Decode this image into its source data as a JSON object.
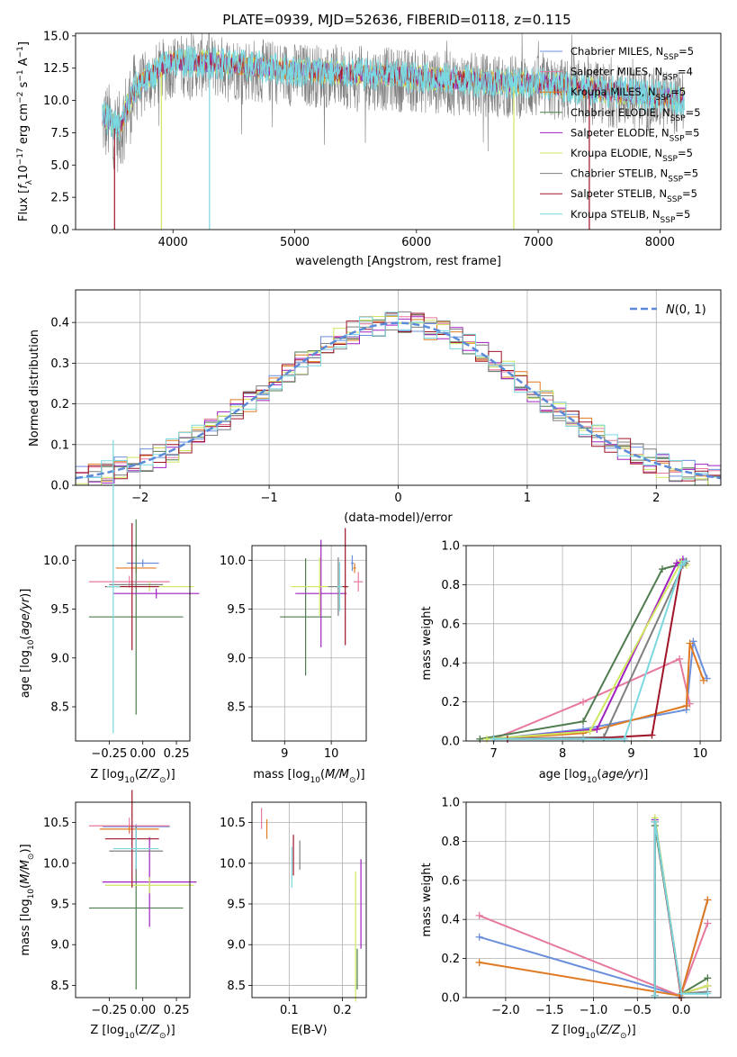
{
  "colors": {
    "chab_miles": "#6a8fdc",
    "salp_miles": "#e6799f",
    "krou_miles": "#e07a22",
    "chab_elodie": "#4f7c4f",
    "salp_elodie": "#a020c0",
    "krou_elodie": "#cfe860",
    "chab_stelib": "#7f7f7f",
    "salp_stelib": "#a01428",
    "krou_stelib": "#7ad8e0",
    "gauss": "#5b8ad8"
  },
  "chart_data": [
    {
      "type": "line",
      "id": "spectrum",
      "title": "PLATE=0939, MJD=52636, FIBERID=0118, z=0.115",
      "xlabel": "wavelength [Angstrom, rest frame]",
      "ylabel": "Flux [f_λ 10^−17 erg cm^−2 s^−1 A^−1]",
      "xlim": [
        3200,
        8500
      ],
      "ylim": [
        0,
        15.2
      ],
      "xticks": [
        4000,
        5000,
        6000,
        7000,
        8000
      ],
      "yticks": [
        0.0,
        2.5,
        5.0,
        7.5,
        10.0,
        12.5,
        15.0
      ],
      "grid": false,
      "legend_position": "top-right",
      "legend": [
        "Chabrier MILES, N_SSP=5",
        "Salpeter MILES, N_SSP=4",
        "Kroupa MILES, N_SSP=5",
        "Chabrier ELODIE, N_SSP=5",
        "Salpeter ELODIE, N_SSP=5",
        "Kroupa ELODIE, N_SSP=5",
        "Chabrier STELIB, N_SSP=5",
        "Salpeter STELIB, N_SSP=5",
        "Kroupa STELIB, N_SSP=5"
      ],
      "continuum": [
        [
          3420,
          8.5
        ],
        [
          3500,
          8.0
        ],
        [
          3560,
          7.5
        ],
        [
          3620,
          9.2
        ],
        [
          3700,
          10.8
        ],
        [
          3800,
          11.5
        ],
        [
          3900,
          12.2
        ],
        [
          4000,
          12.7
        ],
        [
          4200,
          12.7
        ],
        [
          4500,
          12.5
        ],
        [
          5000,
          12.0
        ],
        [
          5500,
          11.8
        ],
        [
          6000,
          11.5
        ],
        [
          6500,
          11.2
        ],
        [
          7000,
          11.0
        ],
        [
          7500,
          10.5
        ],
        [
          8000,
          10.0
        ],
        [
          8200,
          9.8
        ]
      ],
      "gaps": [
        {
          "x": 3520,
          "series": "Salpeter STELIB"
        },
        {
          "x": 3905,
          "series": "Kroupa ELODIE"
        },
        {
          "x": 4300,
          "series": "Kroupa STELIB"
        },
        {
          "x": 6800,
          "series": "Kroupa ELODIE"
        },
        {
          "x": 7420,
          "series": "Salpeter STELIB"
        }
      ]
    },
    {
      "type": "histogram",
      "id": "residuals",
      "xlabel": "(data-model)/error",
      "ylabel": "Normed distribution",
      "xlim": [
        -2.5,
        2.5
      ],
      "ylim": [
        0,
        0.48
      ],
      "xticks": [
        -2,
        -1,
        0,
        1,
        2
      ],
      "yticks": [
        0.0,
        0.1,
        0.2,
        0.3,
        0.4
      ],
      "grid": true,
      "bin_width": 0.1,
      "legend": [
        "N(0,1)"
      ],
      "legend_position": "top-right"
    },
    {
      "type": "scatter",
      "id": "age_vs_Z",
      "xlabel": "Z [log10(Z/Z⊙)]",
      "ylabel": "age [log10(age/yr)]",
      "xlim": [
        -0.5,
        0.35
      ],
      "ylim": [
        8.15,
        10.15
      ],
      "xticks": [
        -0.25,
        0.0,
        0.25
      ],
      "yticks": [
        8.5,
        9.0,
        9.5,
        10.0
      ],
      "grid": false,
      "points": [
        {
          "series": "Chabrier MILES",
          "x": 0.0,
          "y": 9.97,
          "xerr": 0.12,
          "yerr": 0.04
        },
        {
          "series": "Salpeter MILES",
          "x": -0.1,
          "y": 9.78,
          "xerr": 0.3,
          "yerr": 0.06
        },
        {
          "series": "Kroupa MILES",
          "x": -0.05,
          "y": 9.92,
          "xerr": 0.15,
          "yerr": 0.05
        },
        {
          "series": "Chabrier ELODIE",
          "x": -0.05,
          "y": 9.42,
          "xerr": 0.35,
          "yerr": 1.0
        },
        {
          "series": "Salpeter ELODIE",
          "x": 0.1,
          "y": 9.66,
          "xerr": 0.32,
          "yerr": 0.05
        },
        {
          "series": "Kroupa ELODIE",
          "x": 0.05,
          "y": 9.73,
          "xerr": 0.33,
          "yerr": 0.05
        },
        {
          "series": "Chabrier STELIB",
          "x": -0.05,
          "y": 9.75,
          "xerr": 0.2,
          "yerr": 0.05
        },
        {
          "series": "Salpeter STELIB",
          "x": -0.08,
          "y": 9.73,
          "xerr": 0.2,
          "yerr": 0.65
        },
        {
          "series": "Kroupa STELIB",
          "x": -0.22,
          "y": 9.73,
          "xerr": 0.05,
          "yerr": 1.5
        }
      ]
    },
    {
      "type": "scatter",
      "id": "age_vs_mass",
      "xlabel": "mass [log10(M/M⊙)]",
      "ylabel": "",
      "xlim": [
        8.3,
        10.75
      ],
      "ylim": [
        8.15,
        10.15
      ],
      "xticks": [
        9,
        10
      ],
      "yticks": [
        8.5,
        9.0,
        9.5,
        10.0
      ],
      "grid": true,
      "points": [
        {
          "series": "Chabrier ELODIE",
          "x": 9.45,
          "y": 9.42,
          "xerr": 0.55,
          "yerr": 0.6
        },
        {
          "series": "Salpeter ELODIE",
          "x": 9.78,
          "y": 9.66,
          "xerr": 0.55,
          "yerr": 0.55
        },
        {
          "series": "Kroupa ELODIE",
          "x": 9.75,
          "y": 9.73,
          "xerr": 0.62,
          "yerr": 0.3
        },
        {
          "series": "Chabrier STELIB",
          "x": 10.15,
          "y": 9.73,
          "xerr": 0.22,
          "yerr": 0.3
        },
        {
          "series": "Salpeter STELIB",
          "x": 10.3,
          "y": 9.73,
          "xerr": 0.05,
          "yerr": 0.6
        },
        {
          "series": "Kroupa STELIB",
          "x": 10.18,
          "y": 9.73,
          "xerr": 0.05,
          "yerr": 0.25
        },
        {
          "series": "Chabrier MILES",
          "x": 10.45,
          "y": 9.97,
          "xerr": 0.03,
          "yerr": 0.08
        },
        {
          "series": "Salpeter MILES",
          "x": 10.58,
          "y": 9.78,
          "xerr": 0.1,
          "yerr": 0.1
        },
        {
          "series": "Kroupa MILES",
          "x": 10.5,
          "y": 9.92,
          "xerr": 0.03,
          "yerr": 0.05
        }
      ]
    },
    {
      "type": "line",
      "id": "massweight_vs_age",
      "xlabel": "age [log10(age/yr)]",
      "ylabel": "mass weight",
      "xlim": [
        6.6,
        10.3
      ],
      "ylim": [
        0,
        1.0
      ],
      "xticks": [
        7,
        8,
        9,
        10
      ],
      "yticks": [
        0.0,
        0.2,
        0.4,
        0.6,
        0.8,
        1.0
      ],
      "grid": true,
      "series": [
        {
          "name": "Chabrier MILES",
          "x": [
            7.0,
            8.3,
            9.8,
            9.9,
            10.1
          ],
          "y": [
            0.01,
            0.06,
            0.16,
            0.51,
            0.32
          ]
        },
        {
          "name": "Salpeter MILES",
          "x": [
            7.0,
            8.3,
            9.7,
            9.85
          ],
          "y": [
            0.01,
            0.2,
            0.42,
            0.19
          ]
        },
        {
          "name": "Kroupa MILES",
          "x": [
            7.0,
            8.3,
            9.8,
            9.85,
            10.05
          ],
          "y": [
            0.01,
            0.04,
            0.18,
            0.5,
            0.31
          ]
        },
        {
          "name": "Chabrier ELODIE",
          "x": [
            6.8,
            8.3,
            9.45,
            9.78
          ],
          "y": [
            0.01,
            0.1,
            0.88,
            0.91
          ]
        },
        {
          "name": "Salpeter ELODIE",
          "x": [
            7.0,
            8.5,
            9.66,
            9.75
          ],
          "y": [
            0.01,
            0.06,
            0.91,
            0.93
          ]
        },
        {
          "name": "Kroupa ELODIE",
          "x": [
            6.9,
            8.4,
            9.73,
            9.8
          ],
          "y": [
            0.01,
            0.05,
            0.92,
            0.9
          ]
        },
        {
          "name": "Chabrier STELIB",
          "x": [
            7.0,
            8.6,
            9.75,
            9.8
          ],
          "y": [
            0.01,
            0.02,
            0.9,
            0.92
          ]
        },
        {
          "name": "Salpeter STELIB",
          "x": [
            7.2,
            8.3,
            9.3,
            9.73
          ],
          "y": [
            0.01,
            0.01,
            0.03,
            0.9
          ]
        },
        {
          "name": "Kroupa STELIB",
          "x": [
            7.0,
            8.3,
            8.9,
            9.73,
            9.78
          ],
          "y": [
            0.01,
            0.01,
            0.01,
            0.9,
            0.92
          ]
        }
      ]
    },
    {
      "type": "scatter",
      "id": "mass_vs_Z",
      "xlabel": "Z [log10(Z/Z⊙)]",
      "ylabel": "mass [log10(M/M⊙)]",
      "xlim": [
        -0.5,
        0.35
      ],
      "ylim": [
        8.35,
        10.75
      ],
      "xticks": [
        -0.25,
        0.0,
        0.25
      ],
      "yticks": [
        8.5,
        9.0,
        9.5,
        10.0,
        10.5
      ],
      "grid": false,
      "points": [
        {
          "series": "Chabrier MILES",
          "x": -0.05,
          "y": 10.45,
          "xerr": 0.25,
          "yerr": 0.03
        },
        {
          "series": "Salpeter MILES",
          "x": -0.1,
          "y": 10.46,
          "xerr": 0.3,
          "yerr": 0.1
        },
        {
          "series": "Kroupa MILES",
          "x": -0.1,
          "y": 10.42,
          "xerr": 0.22,
          "yerr": 0.04
        },
        {
          "series": "Chabrier ELODIE",
          "x": -0.05,
          "y": 9.45,
          "xerr": 0.35,
          "yerr": 1.0
        },
        {
          "series": "Salpeter ELODIE",
          "x": 0.05,
          "y": 9.77,
          "xerr": 0.35,
          "yerr": 0.55
        },
        {
          "series": "Kroupa ELODIE",
          "x": 0.05,
          "y": 9.73,
          "xerr": 0.33,
          "yerr": 0.1
        },
        {
          "series": "Chabrier STELIB",
          "x": -0.05,
          "y": 10.15,
          "xerr": 0.2,
          "yerr": 0.3
        },
        {
          "series": "Salpeter STELIB",
          "x": -0.08,
          "y": 10.3,
          "xerr": 0.2,
          "yerr": 0.6
        },
        {
          "series": "Kroupa STELIB",
          "x": -0.05,
          "y": 10.18,
          "xerr": 0.17,
          "yerr": 0.25
        }
      ]
    },
    {
      "type": "scatter",
      "id": "mass_vs_EBV",
      "xlabel": "E(B-V)",
      "ylabel": "",
      "xlim": [
        0.03,
        0.245
      ],
      "ylim": [
        8.35,
        10.75
      ],
      "xticks": [
        0.1,
        0.2
      ],
      "yticks": [
        8.5,
        9.0,
        9.5,
        10.0,
        10.5
      ],
      "grid": true,
      "points": [
        {
          "series": "Salpeter MILES",
          "x": 0.048,
          "y": 10.55,
          "yerr": 0.13
        },
        {
          "series": "Kroupa MILES",
          "x": 0.058,
          "y": 10.42,
          "yerr": 0.12
        },
        {
          "series": "Kroupa STELIB",
          "x": 0.105,
          "y": 9.95,
          "yerr": 0.25
        },
        {
          "series": "Salpeter STELIB",
          "x": 0.108,
          "y": 10.1,
          "yerr": 0.25
        },
        {
          "series": "Chabrier STELIB",
          "x": 0.12,
          "y": 10.1,
          "yerr": 0.18
        },
        {
          "series": "Kroupa ELODIE",
          "x": 0.225,
          "y": 9.1,
          "yerr": 0.8
        },
        {
          "series": "Chabrier ELODIE",
          "x": 0.228,
          "y": 8.7,
          "yerr": 0.25
        },
        {
          "series": "Salpeter ELODIE",
          "x": 0.235,
          "y": 9.5,
          "yerr": 0.55
        }
      ]
    },
    {
      "type": "line",
      "id": "massweight_vs_Z",
      "xlabel": "Z [log10(Z/Z⊙)]",
      "ylabel": "mass weight",
      "xlim": [
        -2.45,
        0.45
      ],
      "ylim": [
        0,
        1.0
      ],
      "xticks": [
        -2.0,
        -1.5,
        -1.0,
        -0.5,
        0.0
      ],
      "yticks": [
        0.0,
        0.2,
        0.4,
        0.6,
        0.8,
        1.0
      ],
      "grid": true,
      "series": [
        {
          "name": "Chabrier MILES",
          "x": [
            -2.3,
            -0.02,
            0.0,
            0.3
          ],
          "y": [
            0.31,
            0.01,
            0.02,
            0.5
          ]
        },
        {
          "name": "Salpeter MILES",
          "x": [
            -2.3,
            -0.02,
            0.0,
            0.3
          ],
          "y": [
            0.42,
            0.01,
            0.02,
            0.38
          ]
        },
        {
          "name": "Kroupa MILES",
          "x": [
            -2.3,
            -0.02,
            0.0,
            0.3
          ],
          "y": [
            0.18,
            0.01,
            0.02,
            0.5
          ]
        },
        {
          "name": "Chabrier ELODIE",
          "x": [
            -0.3,
            -0.3,
            0.0,
            0.3
          ],
          "y": [
            0.01,
            0.88,
            0.02,
            0.1
          ]
        },
        {
          "name": "Salpeter ELODIE",
          "x": [
            -0.3,
            -0.3,
            0.0,
            0.3
          ],
          "y": [
            0.01,
            0.91,
            0.02,
            0.06
          ]
        },
        {
          "name": "Kroupa ELODIE",
          "x": [
            -0.3,
            -0.3,
            0.0,
            0.3
          ],
          "y": [
            0.01,
            0.92,
            0.02,
            0.06
          ]
        },
        {
          "name": "Chabrier STELIB",
          "x": [
            -0.3,
            -0.3,
            0.0,
            0.3
          ],
          "y": [
            0.01,
            0.9,
            0.02,
            0.03
          ]
        },
        {
          "name": "Salpeter STELIB",
          "x": [
            -0.3,
            -0.3,
            0.0
          ],
          "y": [
            0.01,
            0.9,
            0.0
          ]
        },
        {
          "name": "Kroupa STELIB",
          "x": [
            -0.3,
            -0.3,
            0.0,
            0.3
          ],
          "y": [
            0.01,
            0.9,
            0.02,
            0.02
          ]
        }
      ]
    }
  ]
}
